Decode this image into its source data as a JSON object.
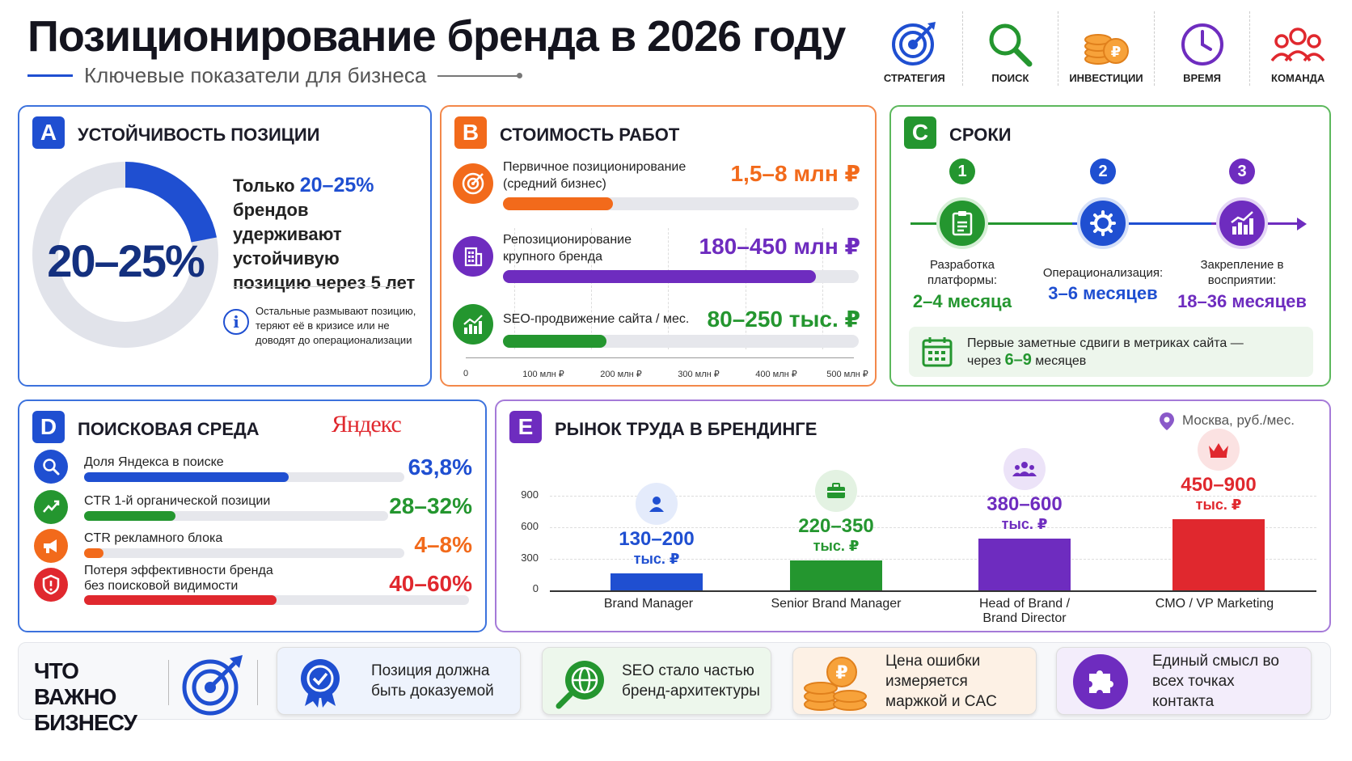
{
  "header": {
    "title": "Позиционирование бренда в 2026 году",
    "subtitle": "Ключевые показатели для бизнеса",
    "icons": [
      {
        "label": "СТРАТЕГИЯ",
        "icon": "target-icon"
      },
      {
        "label": "ПОИСК",
        "icon": "search-icon"
      },
      {
        "label": "ИНВЕСТИЦИИ",
        "icon": "coins-icon"
      },
      {
        "label": "ВРЕМЯ",
        "icon": "clock-icon"
      },
      {
        "label": "КОМАНДА",
        "icon": "team-icon"
      }
    ]
  },
  "colors": {
    "blue": "#1f4fd1",
    "orange": "#f26a1b",
    "green": "#24962f",
    "purple": "#6e2cbf",
    "red": "#e0282e"
  },
  "section_a": {
    "badge": "A",
    "title": "Устойчивость позиции",
    "donut_value": "20–25%",
    "donut_fraction": 0.22,
    "text_prefix": "Только",
    "text_highlight": "20–25%",
    "text_rest": "брендов удерживают устойчивую позицию через 5 лет",
    "note": "Остальные размывают позицию, теряют её в кризисе или не доводят до операционализации"
  },
  "section_b": {
    "badge": "B",
    "title": "Стоимость работ",
    "items": [
      {
        "label": "Первичное позиционирование (средний бизнес)",
        "value": "1,5–8 млн ₽",
        "fill": 0.31,
        "color": "#f26a1b",
        "icon": "target-icon"
      },
      {
        "label": "Репозиционирование крупного бренда",
        "value": "180–450 млн ₽",
        "fill": 0.88,
        "color": "#6e2cbf",
        "icon": "building-icon"
      },
      {
        "label": "SEO-продвижение сайта / мес.",
        "value": "80–250 тыс. ₽",
        "fill": 0.29,
        "color": "#24962f",
        "icon": "growth-chart-icon"
      }
    ],
    "axis_ticks": [
      "0",
      "100 млн ₽",
      "200 млн ₽",
      "300 млн ₽",
      "400 млн ₽",
      "500 млн ₽"
    ]
  },
  "section_c": {
    "badge": "C",
    "title": "Сроки",
    "steps": [
      {
        "num": "1",
        "label": "Разработка платформы:",
        "value": "2–4 месяца",
        "color": "#24962f",
        "icon": "document-icon"
      },
      {
        "num": "2",
        "label": "Операционализация:",
        "value": "3–6 месяцев",
        "color": "#1f4fd1",
        "icon": "gear-icon"
      },
      {
        "num": "3",
        "label": "Закрепление в восприятии:",
        "value": "18–36 месяцев",
        "color": "#6e2cbf",
        "icon": "chart-icon"
      }
    ],
    "note_prefix": "Первые заметные сдвиги в метриках сайта —",
    "note_line2_prefix": "через",
    "note_highlight": "6–9",
    "note_suffix": "месяцев"
  },
  "section_d": {
    "badge": "D",
    "title": "Поисковая среда",
    "brand": "Яндекс",
    "items": [
      {
        "label": "Доля Яндекса в поиске",
        "value": "63,8%",
        "fill": 0.638,
        "color": "#1f4fd1",
        "icon": "search-icon"
      },
      {
        "label": "CTR 1-й органической позиции",
        "value": "28–32%",
        "fill": 0.3,
        "color": "#24962f",
        "icon": "growth-icon"
      },
      {
        "label": "CTR рекламного блока",
        "value": "4–8%",
        "fill": 0.06,
        "color": "#f26a1b",
        "icon": "megaphone-icon"
      },
      {
        "label": "Потеря эффективности бренда без поисковой видимости",
        "value": "40–60%",
        "fill": 0.5,
        "color": "#e0282e",
        "icon": "shield-icon"
      }
    ]
  },
  "section_e": {
    "badge": "E",
    "title": "Рынок труда в брендинге",
    "location": "Москва, руб./мес.",
    "chart_data": {
      "type": "bar",
      "categories": [
        "Brand Manager",
        "Senior Brand Manager",
        "Head of Brand / Brand Director",
        "CMO / VP Marketing"
      ],
      "values": [
        165,
        285,
        490,
        675
      ],
      "value_labels": [
        "130–200",
        "220–350",
        "380–600",
        "450–900"
      ],
      "unit_label": "тыс. ₽",
      "colors": [
        "#1f4fd1",
        "#24962f",
        "#6e2cbf",
        "#e0282e"
      ],
      "icons": [
        "person-icon",
        "briefcase-icon",
        "group-icon",
        "crown-icon"
      ],
      "yticks": [
        "0",
        "300",
        "600",
        "900"
      ],
      "ylim": [
        0,
        900
      ],
      "grid": true
    }
  },
  "footer": {
    "heading": "ЧТО ВАЖНО БИЗНЕСУ",
    "cards": [
      {
        "text": "Позиция должна быть доказуемой",
        "icon": "award-icon"
      },
      {
        "text": "SEO стало частью бренд-архитектуры",
        "icon": "globe-search-icon"
      },
      {
        "text": "Цена ошибки измеряется маржкой и CAC",
        "icon": "coins-icon"
      },
      {
        "text": "Единый смысл во всех точках контакта",
        "icon": "puzzle-icon"
      }
    ]
  }
}
